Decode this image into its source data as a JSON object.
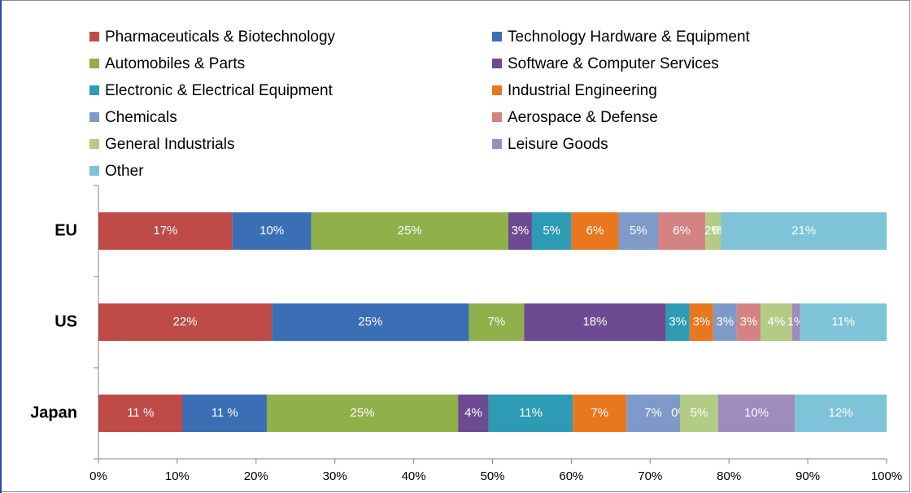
{
  "chart_data": {
    "type": "bar",
    "orientation": "horizontal",
    "stacking": "percent",
    "categories": [
      "EU",
      "US",
      "Japan"
    ],
    "series": [
      {
        "name": "Pharmaceuticals & Biotechnology",
        "color": "#be4b48",
        "values": [
          17,
          22,
          11
        ],
        "value_labels": [
          "17%",
          "22%",
          "11 %"
        ]
      },
      {
        "name": "Technology Hardware & Equipment",
        "color": "#3a6fb5",
        "values": [
          10,
          25,
          11
        ],
        "value_labels": [
          "10%",
          "25%",
          "11 %"
        ]
      },
      {
        "name": "Automobiles & Parts",
        "color": "#8fb04a",
        "values": [
          25,
          7,
          25
        ],
        "value_labels": [
          "25%",
          "7%",
          "25%"
        ]
      },
      {
        "name": "Software & Computer Services",
        "color": "#6c4b92",
        "values": [
          3,
          18,
          4
        ],
        "value_labels": [
          "3%",
          "18%",
          "4%"
        ]
      },
      {
        "name": "Electronic & Electrical Equipment",
        "color": "#2e9bb5",
        "values": [
          5,
          3,
          11
        ],
        "value_labels": [
          "5%",
          "3%",
          "11%"
        ]
      },
      {
        "name": "Industrial Engineering",
        "color": "#e8781f",
        "values": [
          6,
          3,
          7
        ],
        "value_labels": [
          "6%",
          "3%",
          "7%"
        ]
      },
      {
        "name": "Chemicals",
        "color": "#7f9ac9",
        "values": [
          5,
          3,
          7
        ],
        "value_labels": [
          "5%",
          "3%",
          "7%"
        ]
      },
      {
        "name": "Aerospace & Defense",
        "color": "#d48382",
        "values": [
          6,
          3,
          0
        ],
        "value_labels": [
          "6%",
          "3%",
          "0%"
        ]
      },
      {
        "name": "General Industrials",
        "color": "#b2cc85",
        "values": [
          2,
          4,
          5
        ],
        "value_labels": [
          "2%",
          "4%",
          "5%"
        ]
      },
      {
        "name": "Leisure Goods",
        "color": "#a08bbd",
        "values": [
          0,
          1,
          10
        ],
        "value_labels": [
          "0%",
          "1%",
          "10%"
        ]
      },
      {
        "name": "Other",
        "color": "#7ec3d8",
        "values": [
          21,
          11,
          12
        ],
        "value_labels": [
          "21%",
          "11%",
          "12%"
        ]
      }
    ],
    "xlim": [
      0,
      100
    ],
    "xticks": [
      {
        "value": 0,
        "label": "0%"
      },
      {
        "value": 10,
        "label": "10%"
      },
      {
        "value": 20,
        "label": "20%"
      },
      {
        "value": 30,
        "label": "30%"
      },
      {
        "value": 40,
        "label": "40%"
      },
      {
        "value": 50,
        "label": "50%"
      },
      {
        "value": 60,
        "label": "60%"
      },
      {
        "value": 70,
        "label": "70%"
      },
      {
        "value": 80,
        "label": "80%"
      },
      {
        "value": 90,
        "label": "90%"
      },
      {
        "value": 100,
        "label": "100%"
      }
    ],
    "legend": "top"
  }
}
